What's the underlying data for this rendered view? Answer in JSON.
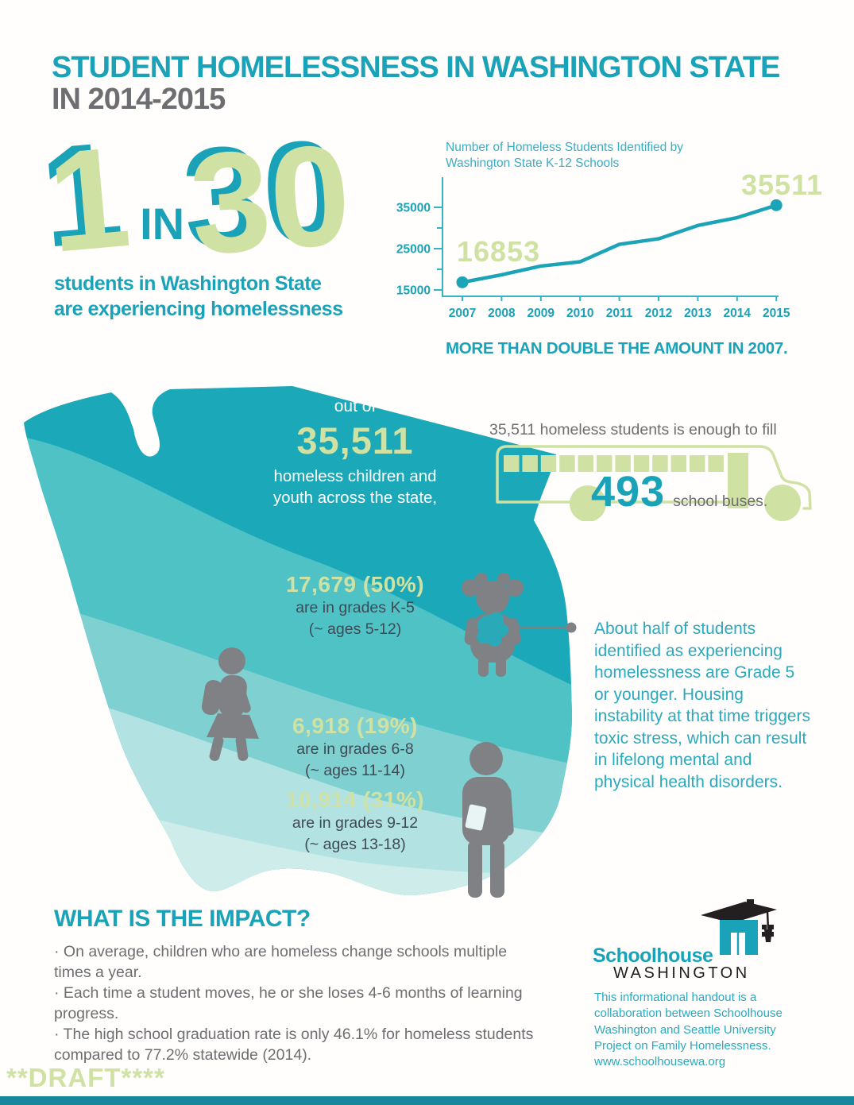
{
  "title": {
    "line1": "STUDENT HOMELESSNESS IN WASHINGTON STATE",
    "line2": "IN 2014-2015"
  },
  "ratio": {
    "big1": "1",
    "connector": "IN",
    "big2": "30",
    "caption1": "students in Washington State",
    "caption2": "are experiencing homelessness"
  },
  "chart_data": {
    "type": "line",
    "title": "Number of Homeless Students Identified by Washington State K-12 Schools",
    "x": [
      "2007",
      "2008",
      "2009",
      "2010",
      "2011",
      "2012",
      "2013",
      "2014",
      "2015"
    ],
    "values": [
      16853,
      18670,
      20780,
      21826,
      26049,
      27390,
      30609,
      32494,
      35511
    ],
    "first_point_label": "16853",
    "last_point_label": "35511",
    "yticks_major": [
      35000,
      25000,
      15000
    ],
    "yticks_minor": [
      30000,
      20000
    ],
    "ylim": [
      15000,
      37000
    ],
    "grid": false,
    "legend": false,
    "line_color": "#1ba4b8",
    "axis_color": "#35b2c5",
    "tick_label_color": "#1aa2b8",
    "point_label_color": "#cfe2a3"
  },
  "chart_note": "MORE THAN DOUBLE THE AMOUNT IN 2007.",
  "bus": {
    "lead": "35,511 homeless students is enough to fill",
    "count": "493",
    "unit": "school buses."
  },
  "map": {
    "out_of": "out of",
    "total": "35,511",
    "total_caption1": "homeless children and",
    "total_caption2": "youth across the state,",
    "groups": [
      {
        "stat": "17,679 (50%)",
        "grades": "are in grades K-5",
        "ages": "(~ ages 5-12)"
      },
      {
        "stat": "6,918 (19%)",
        "grades": "are in grades 6-8",
        "ages": "(~ ages 11-14)"
      },
      {
        "stat": "10,914 (31%)",
        "grades": "are in grades 9-12",
        "ages": "(~ ages 13-18)"
      }
    ]
  },
  "aside": "About half of students identified as experiencing homelessness are Grade 5 or younger. Housing instability at that time triggers toxic stress, which can result in lifelong mental and physical health disorders.",
  "impact": {
    "heading": "WHAT IS THE IMPACT?",
    "bullets": [
      "· On average, children who are homeless change schools multiple times a year.",
      "· Each time a student moves, he or she loses 4-6 months of learning progress.",
      "· The high school graduation rate is only 46.1% for homeless students compared to 77.2% statewide (2014)."
    ]
  },
  "logo": {
    "line1": "Schoolhouse",
    "line2": "WASHINGTON"
  },
  "credit": {
    "text": "This informational handout is a collaboration between Schoolhouse Washington and Seattle University Project on Family Homelessness.",
    "url": "www.schoolhousewa.org"
  },
  "draft": "**DRAFT****",
  "colors": {
    "teal": "#1aa2b8",
    "green": "#cfe2a3",
    "gray": "#6d6e71",
    "dark_text": "#3f4b54",
    "silhouette": "#808184",
    "map_bands": [
      "#1ba8b8",
      "#4fc2c6",
      "#7fd0d1",
      "#b3e2e2",
      "#cdecea"
    ]
  }
}
